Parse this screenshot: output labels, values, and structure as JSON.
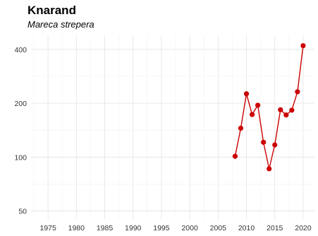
{
  "chart_data": {
    "type": "line",
    "title": "Knarand",
    "subtitle": "Mareca strepera",
    "xlabel": "",
    "ylabel": "",
    "y_scale": "log",
    "xlim": [
      1972,
      2022
    ],
    "ylim": [
      45,
      480
    ],
    "x_ticks": [
      1975,
      1980,
      1985,
      1990,
      1995,
      2000,
      2005,
      2010,
      2015,
      2020
    ],
    "y_ticks": [
      50,
      100,
      200,
      400
    ],
    "grid": true,
    "series": [
      {
        "color": "#cc0000",
        "x": [
          2008,
          2009,
          2010,
          2011,
          2012,
          2013,
          2014,
          2015,
          2016,
          2017,
          2018,
          2019,
          2020
        ],
        "y": [
          101,
          145,
          226,
          173,
          195,
          121,
          86,
          117,
          184,
          172,
          183,
          232,
          420
        ]
      }
    ]
  }
}
